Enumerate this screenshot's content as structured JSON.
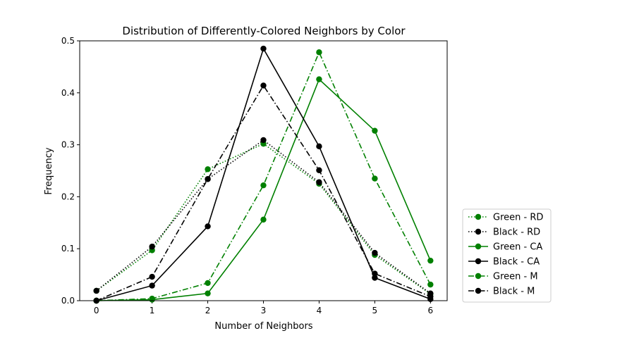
{
  "chart_data": {
    "type": "line",
    "title": "Distribution of Differently-Colored Neighbors by Color",
    "xlabel": "Number of Neighbors",
    "ylabel": "Frequency",
    "xlim": [
      -0.3,
      6.3
    ],
    "ylim": [
      0,
      0.5
    ],
    "xticks": [
      "0",
      "1",
      "2",
      "3",
      "4",
      "5",
      "6"
    ],
    "yticks": [
      "0.0",
      "0.1",
      "0.2",
      "0.3",
      "0.4",
      "0.5"
    ],
    "x": [
      0,
      1,
      2,
      3,
      4,
      5,
      6
    ],
    "grid": false,
    "legend_position": "outside-right-bottom",
    "series": [
      {
        "name": "Green - RD",
        "color": "#008000",
        "linestyle": "dotted",
        "values": [
          0.019,
          0.097,
          0.253,
          0.302,
          0.225,
          0.088,
          0.013
        ]
      },
      {
        "name": "Black - RD",
        "color": "#000000",
        "linestyle": "dotted",
        "values": [
          0.019,
          0.104,
          0.234,
          0.309,
          0.228,
          0.092,
          0.014
        ]
      },
      {
        "name": "Green - CA",
        "color": "#008000",
        "linestyle": "solid",
        "values": [
          0.0,
          0.002,
          0.014,
          0.156,
          0.426,
          0.327,
          0.077
        ]
      },
      {
        "name": "Black - CA",
        "color": "#000000",
        "linestyle": "solid",
        "values": [
          0.0,
          0.029,
          0.143,
          0.485,
          0.297,
          0.044,
          0.003
        ]
      },
      {
        "name": "Green - M",
        "color": "#008000",
        "linestyle": "dashdot",
        "values": [
          0.0,
          0.004,
          0.034,
          0.222,
          0.478,
          0.235,
          0.031
        ]
      },
      {
        "name": "Black - M",
        "color": "#000000",
        "linestyle": "dashdot",
        "values": [
          0.0,
          0.046,
          0.234,
          0.414,
          0.251,
          0.052,
          0.008
        ]
      }
    ]
  }
}
